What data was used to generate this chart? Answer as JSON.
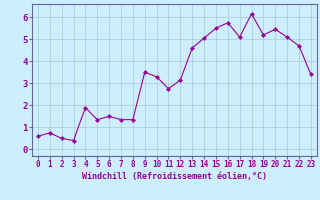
{
  "x": [
    0,
    1,
    2,
    3,
    4,
    5,
    6,
    7,
    8,
    9,
    10,
    11,
    12,
    13,
    14,
    15,
    16,
    17,
    18,
    19,
    20,
    21,
    22,
    23
  ],
  "y": [
    0.6,
    0.75,
    0.5,
    0.4,
    1.9,
    1.35,
    1.5,
    1.35,
    1.35,
    3.5,
    3.3,
    2.75,
    3.15,
    4.6,
    5.05,
    5.5,
    5.75,
    5.1,
    6.15,
    5.2,
    5.45,
    5.1,
    4.7,
    3.4
  ],
  "line_color": "#990099",
  "marker": "D",
  "marker_size": 2.0,
  "bg_color": "#cceeff",
  "grid_color": "#aacccc",
  "xlabel": "Windchill (Refroidissement éolien,°C)",
  "xlabel_color": "#990099",
  "tick_color": "#990099",
  "label_color": "#990099",
  "ylim": [
    -0.3,
    6.6
  ],
  "xlim": [
    -0.5,
    23.5
  ],
  "yticks": [
    0,
    1,
    2,
    3,
    4,
    5,
    6
  ],
  "xticks": [
    0,
    1,
    2,
    3,
    4,
    5,
    6,
    7,
    8,
    9,
    10,
    11,
    12,
    13,
    14,
    15,
    16,
    17,
    18,
    19,
    20,
    21,
    22,
    23
  ],
  "spine_color": "#666699",
  "linewidth": 0.8,
  "tick_fontsize": 5.5,
  "xlabel_fontsize": 6.0
}
